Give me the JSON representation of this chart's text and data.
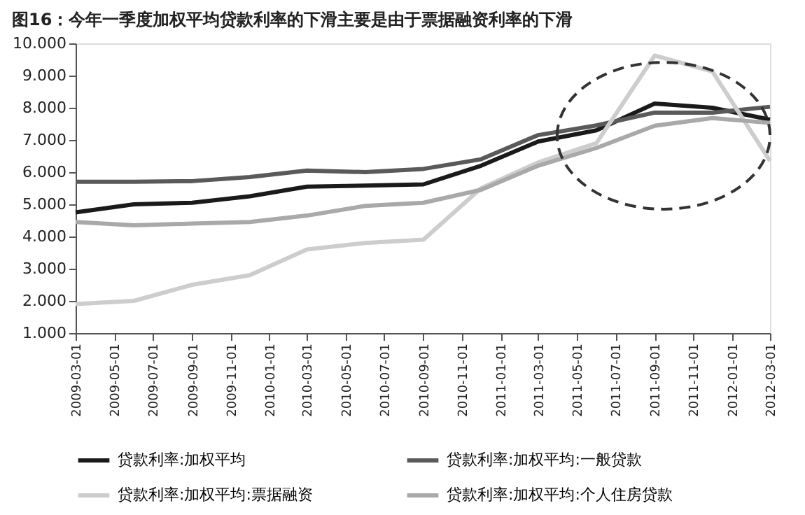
{
  "chart_data": {
    "type": "line",
    "title": "图16：今年一季度加权平均贷款利率的下滑主要是由于票据融资利率的下滑",
    "x": [
      "2009-03-01",
      "2009-06-01",
      "2009-09-01",
      "2009-12-01",
      "2010-03-01",
      "2010-06-01",
      "2010-09-01",
      "2010-12-01",
      "2011-03-01",
      "2011-06-01",
      "2011-09-01",
      "2011-12-01",
      "2012-03-01"
    ],
    "series": [
      {
        "name": "贷款利率:加权平均",
        "color": "#1a1a1a",
        "values": [
          4.75,
          5.0,
          5.05,
          5.25,
          5.55,
          5.58,
          5.62,
          6.2,
          6.95,
          7.3,
          8.13,
          8.0,
          7.63
        ]
      },
      {
        "name": "贷款利率:加权平均:一般贷款",
        "color": "#5a5a5a",
        "values": [
          5.7,
          5.7,
          5.72,
          5.85,
          6.05,
          6.0,
          6.1,
          6.4,
          7.15,
          7.45,
          7.85,
          7.85,
          8.03
        ]
      },
      {
        "name": "贷款利率:加权平均:票据融资",
        "color": "#cdcdcd",
        "values": [
          1.9,
          2.0,
          2.5,
          2.8,
          3.6,
          3.8,
          3.9,
          5.5,
          6.3,
          6.9,
          9.62,
          9.13,
          6.35
        ]
      },
      {
        "name": "贷款利率:加权平均:个人住房贷款",
        "color": "#a9a9a9",
        "values": [
          4.45,
          4.35,
          4.4,
          4.45,
          4.65,
          4.95,
          5.05,
          5.45,
          6.2,
          6.75,
          7.44,
          7.68,
          7.53
        ]
      }
    ],
    "xlim": [
      "2009-03-01",
      "2012-03-01"
    ],
    "xticks": [
      "2009-03-01",
      "2009-05-01",
      "2009-07-01",
      "2009-09-01",
      "2009-11-01",
      "2010-01-01",
      "2010-03-01",
      "2010-05-01",
      "2010-07-01",
      "2010-09-01",
      "2010-11-01",
      "2011-01-01",
      "2011-03-01",
      "2011-05-01",
      "2011-07-01",
      "2011-09-01",
      "2011-11-01",
      "2012-01-01",
      "2012-03-01"
    ],
    "ylim": [
      1,
      10
    ],
    "yticks": [
      {
        "value": 1,
        "label": "1.000"
      },
      {
        "value": 2,
        "label": "2.000"
      },
      {
        "value": 3,
        "label": "3.000"
      },
      {
        "value": 4,
        "label": "4.000"
      },
      {
        "value": 5,
        "label": "5.000"
      },
      {
        "value": 6,
        "label": "6.000"
      },
      {
        "value": 7,
        "label": "7.000"
      },
      {
        "value": 8,
        "label": "8.000"
      },
      {
        "value": 9,
        "label": "9.000"
      },
      {
        "value": 10,
        "label": "10.000"
      }
    ],
    "grid": false,
    "legend": "bottom",
    "marker": "none",
    "line_style": "solid"
  }
}
